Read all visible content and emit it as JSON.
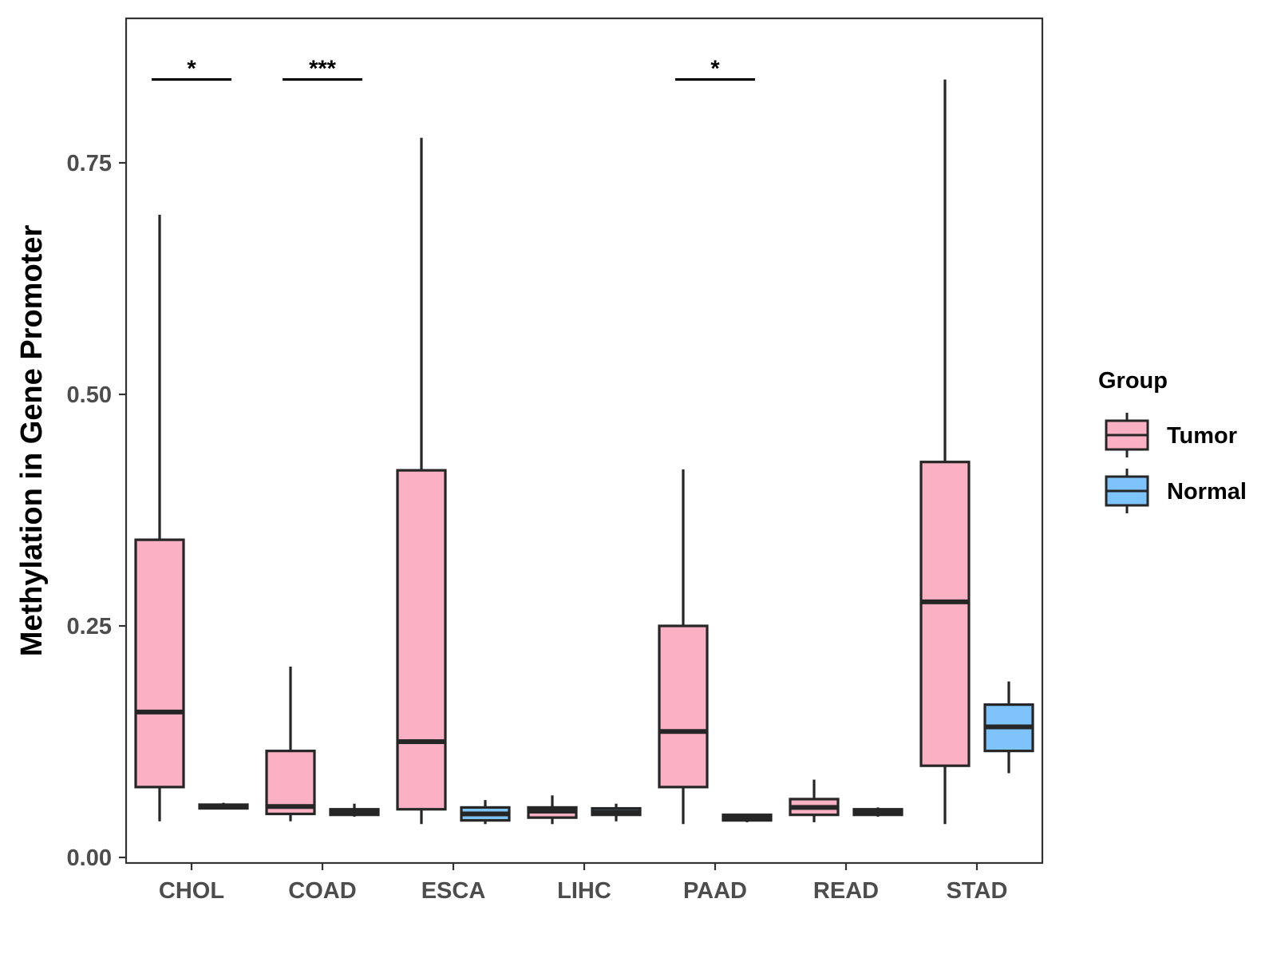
{
  "chart_data": {
    "type": "boxplot",
    "title": "",
    "xlabel": "",
    "ylabel": "Methylation in Gene Promoter",
    "ylim": [
      -0.006,
      0.906
    ],
    "yticks": [
      0.0,
      0.25,
      0.5,
      0.75
    ],
    "ytick_labels": [
      "0.00",
      "0.25",
      "0.50",
      "0.75"
    ],
    "categories": [
      "CHOL",
      "COAD",
      "ESCA",
      "LIHC",
      "PAAD",
      "READ",
      "STAD"
    ],
    "legend": {
      "title": "Group",
      "placement": "right",
      "entries": [
        {
          "name": "Tumor",
          "color": "#FBB1C3"
        },
        {
          "name": "Normal",
          "color": "#7EC3FB"
        }
      ]
    },
    "series": [
      {
        "name": "Tumor",
        "color": "#FBB1C3",
        "boxes": [
          {
            "min": 0.039,
            "q1": 0.076,
            "median": 0.157,
            "q3": 0.343,
            "max": 0.694
          },
          {
            "min": 0.039,
            "q1": 0.047,
            "median": 0.055,
            "q3": 0.115,
            "max": 0.206
          },
          {
            "min": 0.036,
            "q1": 0.052,
            "median": 0.125,
            "q3": 0.418,
            "max": 0.777
          },
          {
            "min": 0.036,
            "q1": 0.043,
            "median": 0.05,
            "q3": 0.054,
            "max": 0.067
          },
          {
            "min": 0.036,
            "q1": 0.076,
            "median": 0.136,
            "q3": 0.25,
            "max": 0.419
          },
          {
            "min": 0.038,
            "q1": 0.046,
            "median": 0.054,
            "q3": 0.063,
            "max": 0.084
          },
          {
            "min": 0.036,
            "q1": 0.099,
            "median": 0.276,
            "q3": 0.427,
            "max": 0.84
          }
        ]
      },
      {
        "name": "Normal",
        "color": "#7EC3FB",
        "boxes": [
          {
            "min": 0.053,
            "q1": 0.053,
            "median": 0.055,
            "q3": 0.057,
            "max": 0.059
          },
          {
            "min": 0.044,
            "q1": 0.046,
            "median": 0.049,
            "q3": 0.052,
            "max": 0.058
          },
          {
            "min": 0.036,
            "q1": 0.04,
            "median": 0.047,
            "q3": 0.054,
            "max": 0.062
          },
          {
            "min": 0.039,
            "q1": 0.046,
            "median": 0.049,
            "q3": 0.053,
            "max": 0.058
          },
          {
            "min": 0.038,
            "q1": 0.04,
            "median": 0.043,
            "q3": 0.046,
            "max": 0.047
          },
          {
            "min": 0.044,
            "q1": 0.046,
            "median": 0.049,
            "q3": 0.052,
            "max": 0.054
          },
          {
            "min": 0.091,
            "q1": 0.115,
            "median": 0.141,
            "q3": 0.165,
            "max": 0.19
          }
        ]
      }
    ],
    "significance": [
      {
        "category": "CHOL",
        "label": "*",
        "y": 0.84
      },
      {
        "category": "COAD",
        "label": "***",
        "y": 0.84
      },
      {
        "category": "PAAD",
        "label": "*",
        "y": 0.84
      }
    ]
  }
}
